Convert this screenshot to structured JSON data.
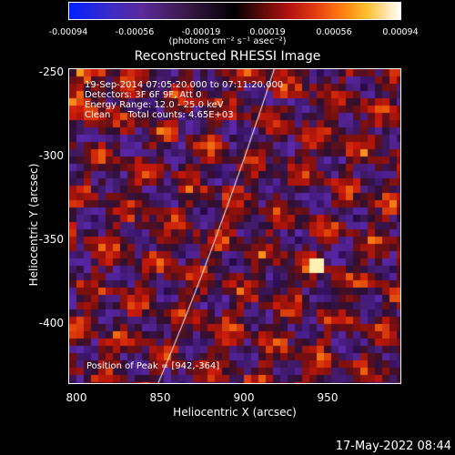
{
  "colorbar": {
    "ticks": [
      "-0.00094",
      "-0.00056",
      "-0.00019",
      "0.00019",
      "0.00056",
      "0.00094"
    ],
    "unit": "(photons cm⁻² s⁻¹ asec⁻²)"
  },
  "title": "Reconstructed RHESSI Image",
  "info": {
    "line1": "19-Sep-2014 07:05:20.000 to 07:11:20.000",
    "line2": "Detectors: 3F 6F 9F, Att 0",
    "line3": "Energy Range: 12.0 - 25.0 keV",
    "line4": "Clean      Total counts: 4.65E+03",
    "peak": "Position of Peak = [942,-364]"
  },
  "axes": {
    "xlabel": "Heliocentric X (arcsec)",
    "ylabel": "Heliocentric Y (arcsec)",
    "xticks": [
      "800",
      "850",
      "900",
      "950"
    ],
    "yticks": [
      "-250",
      "-300",
      "-350",
      "-400"
    ]
  },
  "footer": {
    "timestamp": "17-May-2022 08:44"
  }
}
